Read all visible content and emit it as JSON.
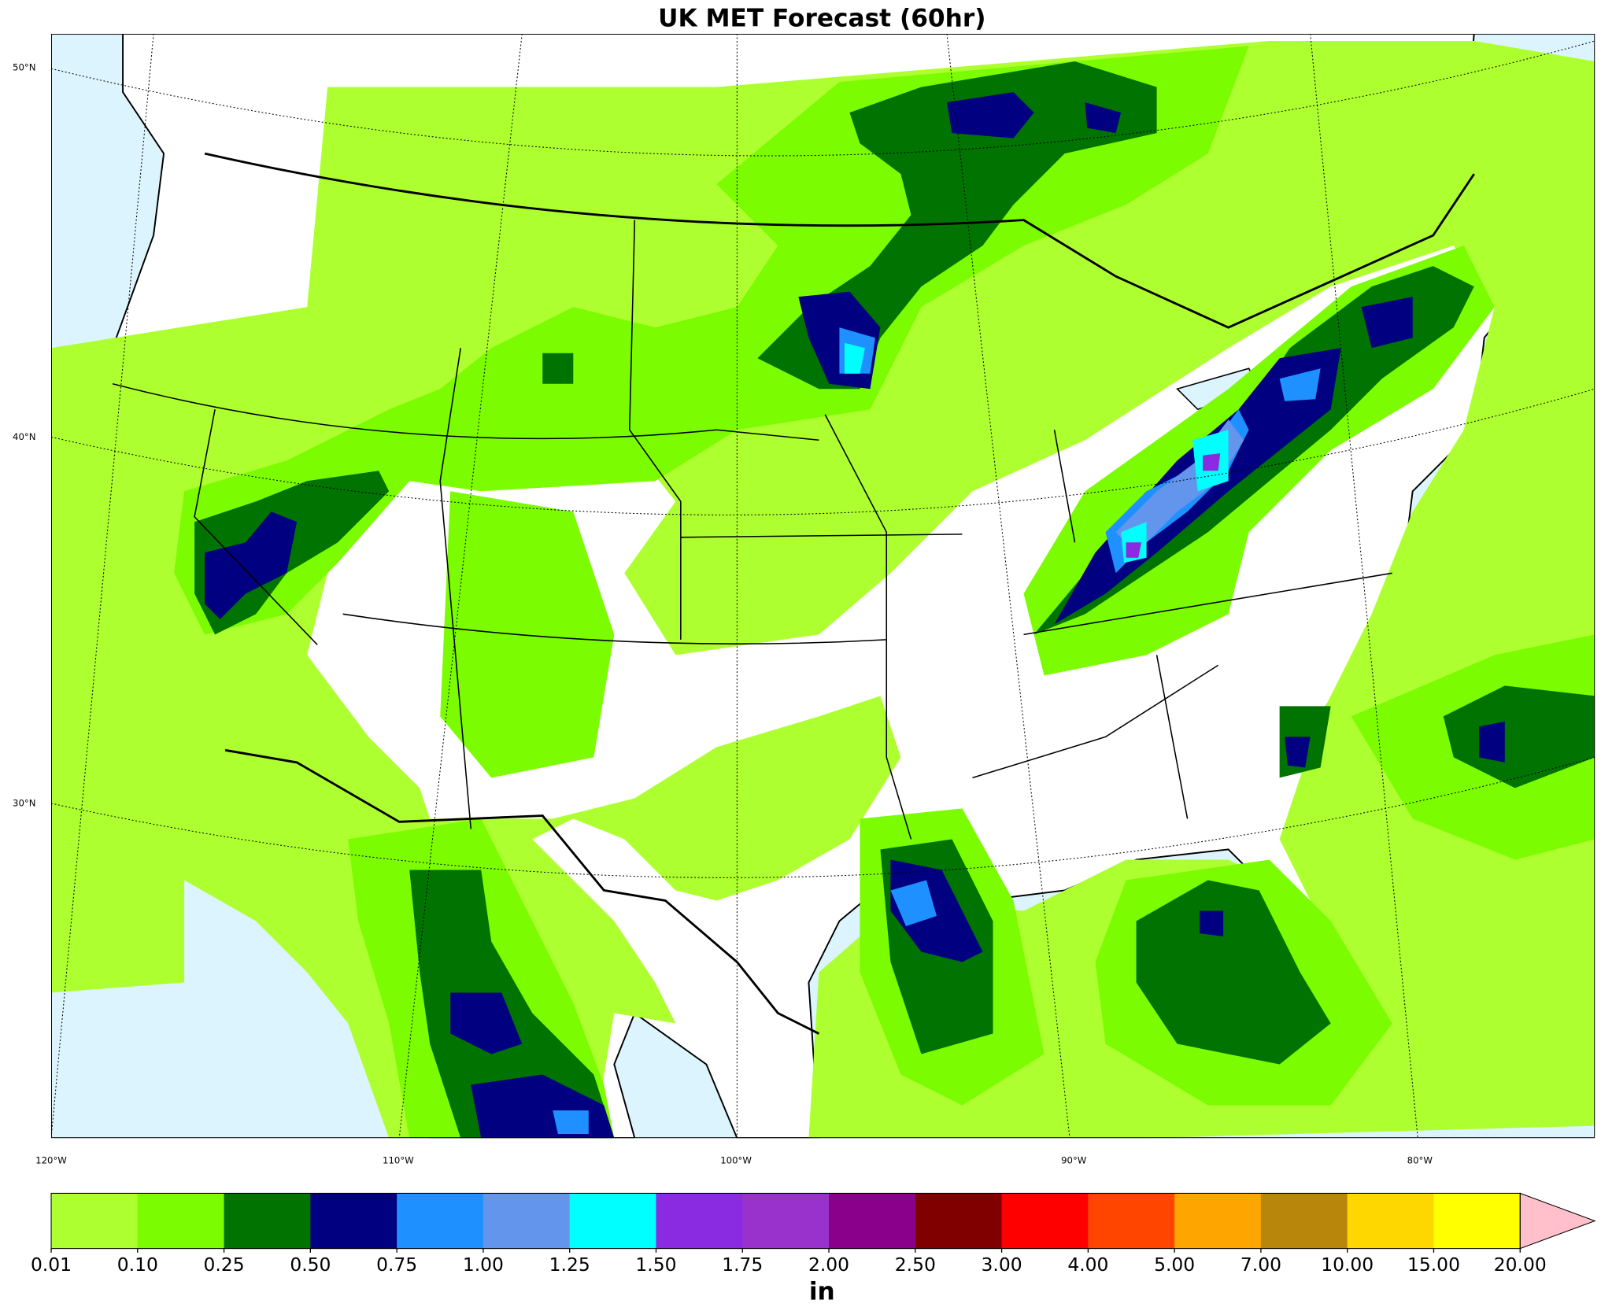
{
  "title": "UK MET Forecast (60hr)",
  "map": {
    "lat_labels": [
      "50°N",
      "40°N",
      "30°N"
    ],
    "lon_labels": [
      "120°W",
      "110°W",
      "100°W",
      "90°W",
      "80°W"
    ]
  },
  "colorbar": {
    "label": "in",
    "ticks": [
      {
        "value": 0.01,
        "label": "0.01"
      },
      {
        "value": 0.1,
        "label": "0.10"
      },
      {
        "value": 0.25,
        "label": "0.25"
      },
      {
        "value": 0.5,
        "label": "0.50"
      },
      {
        "value": 0.75,
        "label": "0.75"
      },
      {
        "value": 1,
        "label": "1.00"
      },
      {
        "value": 1.25,
        "label": "1.25"
      },
      {
        "value": 1.5,
        "label": "1.50"
      },
      {
        "value": 1.75,
        "label": "1.75"
      },
      {
        "value": 2,
        "label": "2.00"
      },
      {
        "value": 2.5,
        "label": "2.50"
      },
      {
        "value": 3,
        "label": "3.00"
      },
      {
        "value": 4,
        "label": "4.00"
      },
      {
        "value": 5,
        "label": "5.00"
      },
      {
        "value": 7,
        "label": "7.00"
      },
      {
        "value": 10,
        "label": "10.00"
      },
      {
        "value": 15,
        "label": "15.00"
      },
      {
        "value": 20,
        "label": "20.00"
      }
    ],
    "colors": [
      "#adff2f",
      "#7cfc00",
      "#007300",
      "#000080",
      "#1e90ff",
      "#6495ed",
      "#00ffff",
      "#8a2be2",
      "#9932cc",
      "#8b008b",
      "#800000",
      "#ff0000",
      "#ff4500",
      "#ffa500",
      "#b8860b",
      "#ffd700",
      "#ffff00"
    ],
    "extend_color": "#ffc0cb"
  }
}
